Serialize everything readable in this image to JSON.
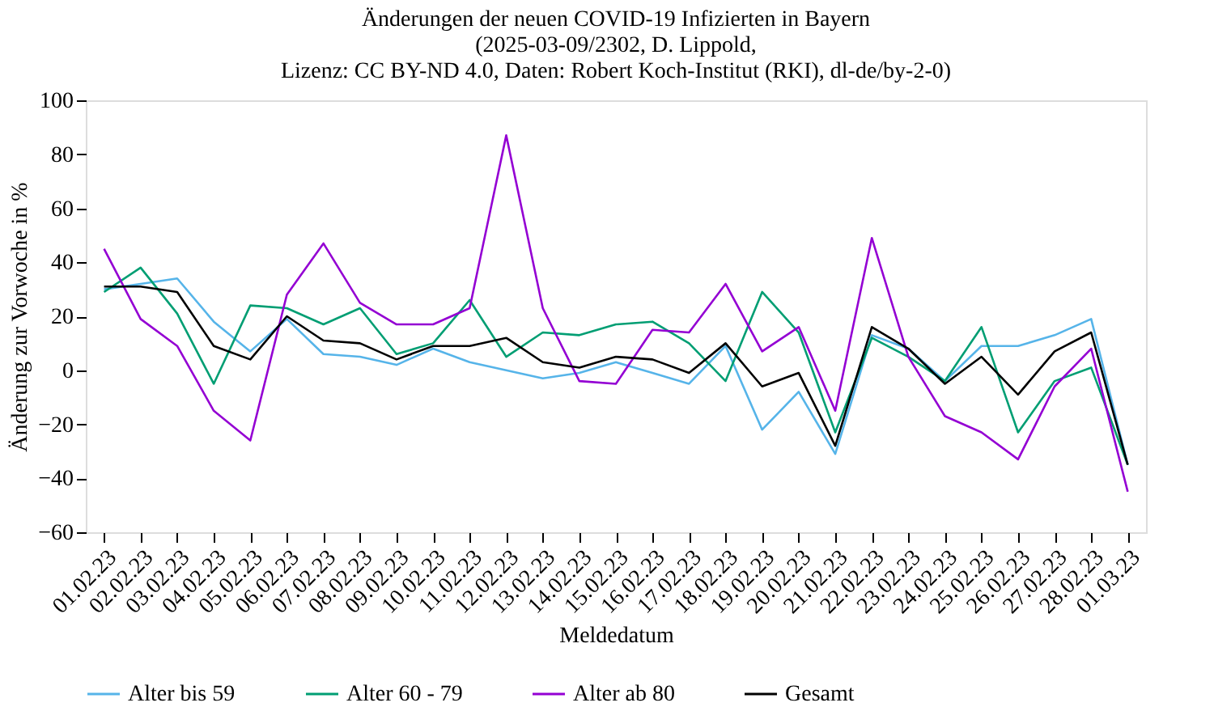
{
  "chart_data": {
    "type": "line",
    "title": "Änderungen der neuen COVID-19 Infizierten in Bayern\n(2025-03-09/2302, D. Lippold,\nLizenz: CC BY-ND 4.0, Daten: Robert Koch-Institut (RKI), dl-de/by-2-0)",
    "xlabel": "Meldedatum",
    "ylabel": "Änderung zur Vorwoche in %",
    "categories": [
      "01.02.23",
      "02.02.23",
      "03.02.23",
      "04.02.23",
      "05.02.23",
      "06.02.23",
      "07.02.23",
      "08.02.23",
      "09.02.23",
      "10.02.23",
      "11.02.23",
      "12.02.23",
      "13.02.23",
      "14.02.23",
      "15.02.23",
      "16.02.23",
      "17.02.23",
      "18.02.23",
      "19.02.23",
      "20.02.23",
      "21.02.23",
      "22.02.23",
      "23.02.23",
      "24.02.23",
      "25.02.23",
      "26.02.23",
      "27.02.23",
      "28.02.23",
      "01.03.23"
    ],
    "series": [
      {
        "name": "Alter bis 59",
        "color": "#56b4e9",
        "values": [
          30,
          32,
          34,
          18,
          7,
          19,
          6,
          5,
          2,
          8,
          3,
          0,
          -3,
          -1,
          3,
          -1,
          -5,
          9,
          -22,
          -8,
          -31,
          13,
          8,
          -4,
          9,
          9,
          13,
          19,
          -35
        ]
      },
      {
        "name": "Alter 60 - 79",
        "color": "#009e73",
        "values": [
          29,
          38,
          21,
          -5,
          24,
          23,
          17,
          23,
          6,
          10,
          26,
          5,
          14,
          13,
          17,
          18,
          10,
          -4,
          29,
          14,
          -23,
          12,
          5,
          -4,
          16,
          -23,
          -4,
          1,
          -35
        ]
      },
      {
        "name": "Alter ab 80",
        "color": "#9400d3",
        "values": [
          45,
          19,
          9,
          -15,
          -26,
          28,
          47,
          25,
          17,
          17,
          23,
          87,
          23,
          -4,
          -5,
          15,
          14,
          32,
          7,
          16,
          -15,
          49,
          5,
          -17,
          -23,
          -33,
          -6,
          8,
          -45
        ]
      },
      {
        "name": "Gesamt",
        "color": "#000000",
        "values": [
          31,
          31,
          29,
          9,
          4,
          20,
          11,
          10,
          4,
          9,
          9,
          12,
          3,
          1,
          5,
          4,
          -1,
          10,
          -6,
          -1,
          -28,
          16,
          8,
          -5,
          5,
          -9,
          7,
          14,
          -35
        ]
      }
    ],
    "ylim": [
      -60,
      100
    ],
    "yticks": [
      -60,
      -40,
      -20,
      0,
      20,
      40,
      60,
      80,
      100
    ],
    "grid": false,
    "legend": "bottom",
    "marker": "none",
    "line_style": "solid"
  }
}
